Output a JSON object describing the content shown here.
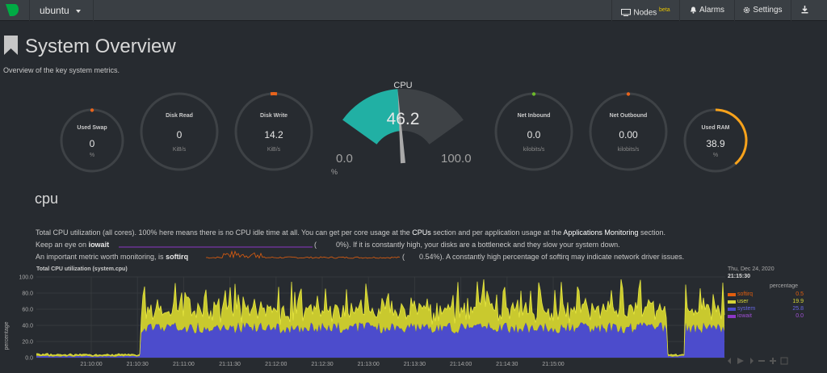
{
  "topbar": {
    "host": "ubuntu",
    "nodes_label": "Nodes",
    "nodes_badge": "beta",
    "alarms_label": "Alarms",
    "settings_label": "Settings"
  },
  "page": {
    "title": "System Overview",
    "subtitle": "Overview of the key system metrics."
  },
  "gauges": {
    "swap": {
      "label": "Used Swap",
      "value": "0",
      "unit": "%"
    },
    "disk_read": {
      "label": "Disk Read",
      "value": "0",
      "unit": "KiB/s"
    },
    "disk_write": {
      "label": "Disk Write",
      "value": "14.2",
      "unit": "KiB/s"
    },
    "net_in": {
      "label": "Net Inbound",
      "value": "0.0",
      "unit": "kilobits/s"
    },
    "net_out": {
      "label": "Net Outbound",
      "value": "0.00",
      "unit": "kilobits/s"
    },
    "ram": {
      "label": "Used RAM",
      "value": "38.9",
      "unit": "%",
      "percent": 38.9
    },
    "cpu": {
      "label": "CPU",
      "value": "46.2",
      "min": "0.0",
      "max": "100.0",
      "unit": "%",
      "percent": 46.2
    }
  },
  "colors": {
    "cpu_arc": "#21b0a4",
    "ram_arc": "#f7a21b",
    "softirq": "#e15e0e",
    "user": "#d6d637",
    "system": "#4c4ccc",
    "iowait": "#8e37c6"
  },
  "section": {
    "heading": "cpu",
    "line1_a": "Total CPU utilization (all cores). 100% here means there is no CPU idle time at all. You can get per core usage at the ",
    "line1_link1": "CPUs",
    "line1_b": " section and per application usage at the ",
    "line1_link2": "Applications Monitoring",
    "line1_c": " section.",
    "line2_a": "Keep an eye on ",
    "line2_b": "iowait",
    "line2_val": "0%",
    "line2_c": "). If it is constantly high, your disks are a bottleneck and they slow your system down.",
    "line3_a": "An important metric worth monitoring, is ",
    "line3_b": "softirq",
    "line3_val": "0.54%",
    "line3_c": "). A constantly high percentage of softirq may indicate network driver issues."
  },
  "chart_data": {
    "type": "area",
    "title": "Total CPU utilization (system.cpu)",
    "ylabel": "percentage",
    "ylim": [
      0,
      100
    ],
    "yticks": [
      "100.0",
      "80.0",
      "60.0",
      "40.0",
      "20.0",
      "0.0"
    ],
    "xticks": [
      "21:10:00",
      "21:10:30",
      "21:11:00",
      "21:11:30",
      "21:12:00",
      "21:12:30",
      "21:13:00",
      "21:13:30",
      "21:14:00",
      "21:14:30",
      "21:15:00"
    ],
    "timestamp_date": "Thu, Dec 24, 2020",
    "timestamp_time": "21:15:30",
    "legend_unit": "percentage",
    "series": [
      {
        "name": "softirq",
        "last": "0.5"
      },
      {
        "name": "user",
        "last": "19.9"
      },
      {
        "name": "system",
        "last": "25.8"
      },
      {
        "name": "iowait",
        "last": "0.0"
      }
    ]
  }
}
